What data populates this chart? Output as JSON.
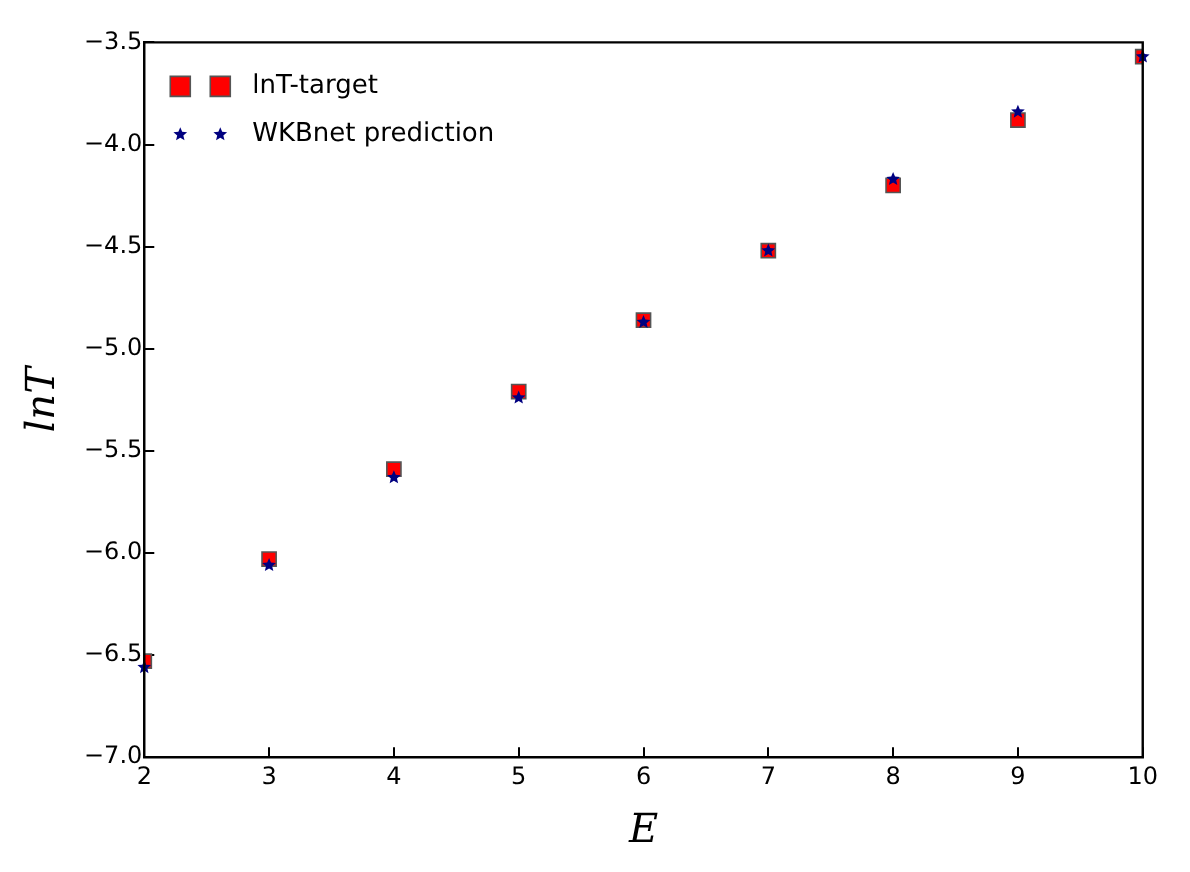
{
  "chart_data": {
    "type": "scatter",
    "xlabel": "E",
    "ylabel": "lnT",
    "x": [
      2,
      3,
      4,
      5,
      6,
      7,
      8,
      9,
      10
    ],
    "series": [
      {
        "name": "lnT-target",
        "color": "#ff0000",
        "marker": "square",
        "values": [
          -6.53,
          -6.03,
          -5.59,
          -5.21,
          -4.86,
          -4.52,
          -4.2,
          -3.88,
          -3.57
        ]
      },
      {
        "name": "WKBnet prediction",
        "color": "#000080",
        "marker": "star",
        "values": [
          -6.56,
          -6.06,
          -5.63,
          -5.24,
          -4.87,
          -4.52,
          -4.17,
          -3.84,
          -3.57
        ]
      }
    ],
    "xlim": [
      2,
      10
    ],
    "xticks": [
      2,
      3,
      4,
      5,
      6,
      7,
      8,
      9,
      10
    ],
    "ylim": [
      -7,
      -3.5
    ],
    "yticks": [
      {
        "value": -7,
        "label": "−7.0"
      },
      {
        "value": -6.5,
        "label": "−6.5"
      },
      {
        "value": -6,
        "label": "−6.0"
      },
      {
        "value": -5.5,
        "label": "−5.5"
      },
      {
        "value": -5,
        "label": "−5.0"
      },
      {
        "value": -4.5,
        "label": "−4.5"
      },
      {
        "value": -4,
        "label": "−4.0"
      },
      {
        "value": -3.5,
        "label": "−3.5"
      }
    ],
    "grid": false,
    "legend": "top left"
  }
}
